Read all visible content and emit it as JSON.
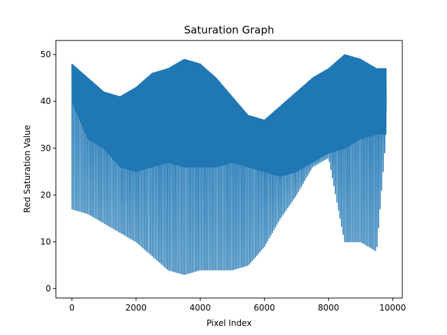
{
  "chart_data": {
    "type": "line",
    "title": "Saturation Graph",
    "xlabel": "Pixel Index",
    "ylabel": "Red Saturation Value",
    "xlim": [
      -500,
      10300
    ],
    "ylim": [
      -2,
      53
    ],
    "xticks": [
      0,
      2000,
      4000,
      6000,
      8000,
      10000
    ],
    "yticks": [
      0,
      10,
      20,
      30,
      40,
      50
    ],
    "grid": false,
    "series_color": "#1f77b4",
    "n_points": 9800,
    "series": [
      {
        "envelope_x": [
          0,
          500,
          1000,
          1500,
          2000,
          2500,
          3000,
          3500,
          4000,
          4500,
          5000,
          5500,
          6000,
          6500,
          7000,
          7500,
          8000,
          8500,
          9000,
          9500,
          9800
        ],
        "upper": [
          48,
          45,
          42,
          41,
          43,
          46,
          47,
          49,
          48,
          45,
          41,
          37,
          36,
          39,
          42,
          45,
          47,
          50,
          49,
          47,
          47
        ],
        "mid_high": [
          43,
          41,
          38,
          36,
          36,
          36,
          37,
          39,
          40,
          38,
          35,
          32,
          31,
          33,
          35,
          37,
          38,
          39,
          38,
          38,
          38
        ],
        "mid_low": [
          40,
          32,
          30,
          26,
          25,
          26,
          27,
          26,
          26,
          26,
          27,
          26,
          25,
          24,
          25,
          27,
          29,
          30,
          32,
          33,
          33
        ],
        "lower": [
          17,
          16,
          14,
          12,
          10,
          7,
          4,
          3,
          4,
          4,
          4,
          5,
          9,
          15,
          20,
          26,
          28,
          10,
          10,
          8,
          33
        ]
      }
    ]
  }
}
